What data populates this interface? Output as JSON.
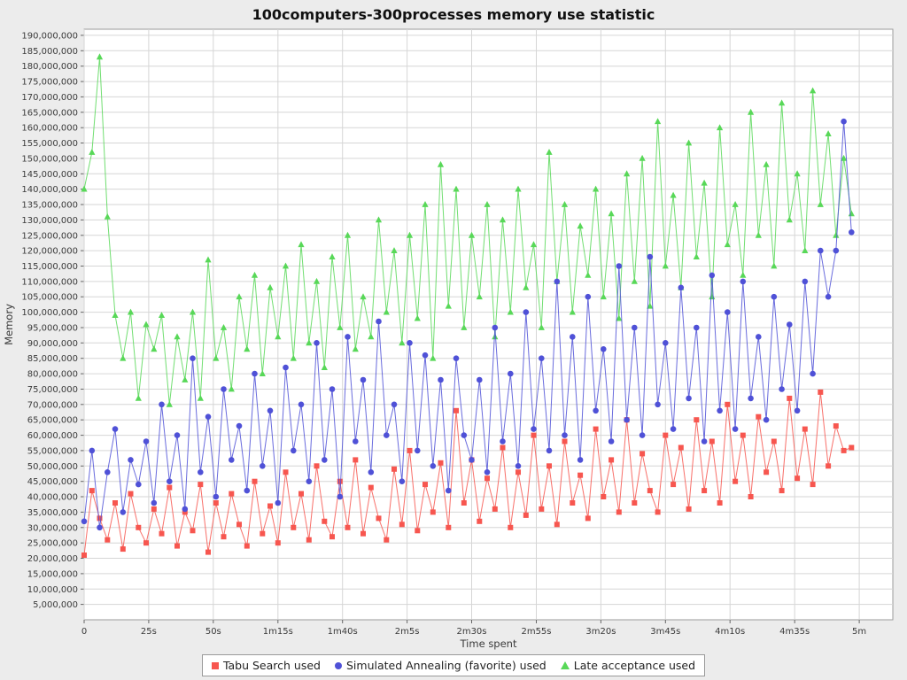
{
  "chart_data": {
    "type": "line",
    "title": "100computers-300processes memory use statistic",
    "xlabel": "Time spent",
    "ylabel": "Memory",
    "ylim": [
      0,
      190000000
    ],
    "y_tick_step": 5000000,
    "xlim_seconds": [
      0,
      300
    ],
    "grid": true,
    "legend_position": "bottom",
    "plot_background": "#ffffff",
    "outer_background": "#ececec",
    "gridline_color": "#d6d6d6",
    "y_unit_multiplier": 1000000,
    "x_ticks": [
      {
        "s": 0,
        "label": "0"
      },
      {
        "s": 25,
        "label": "25s"
      },
      {
        "s": 50,
        "label": "50s"
      },
      {
        "s": 75,
        "label": "1m15s"
      },
      {
        "s": 100,
        "label": "1m40s"
      },
      {
        "s": 125,
        "label": "2m5s"
      },
      {
        "s": 150,
        "label": "2m30s"
      },
      {
        "s": 175,
        "label": "2m55s"
      },
      {
        "s": 200,
        "label": "3m20s"
      },
      {
        "s": 225,
        "label": "3m45s"
      },
      {
        "s": 250,
        "label": "4m10s"
      },
      {
        "s": 275,
        "label": "4m35s"
      },
      {
        "s": 300,
        "label": "5m"
      }
    ],
    "x_seconds": [
      0,
      3,
      6,
      9,
      12,
      15,
      18,
      21,
      24,
      27,
      30,
      33,
      36,
      39,
      42,
      45,
      48,
      51,
      54,
      57,
      60,
      63,
      66,
      69,
      72,
      75,
      78,
      81,
      84,
      87,
      90,
      93,
      96,
      99,
      102,
      105,
      108,
      111,
      114,
      117,
      120,
      123,
      126,
      129,
      132,
      135,
      138,
      141,
      144,
      147,
      150,
      153,
      156,
      159,
      162,
      165,
      168,
      171,
      174,
      177,
      180,
      183,
      186,
      189,
      192,
      195,
      198,
      201,
      204,
      207,
      210,
      213,
      216,
      219,
      222,
      225,
      228,
      231,
      234,
      237,
      240,
      243,
      246,
      249,
      252,
      255,
      258,
      261,
      264,
      267,
      270,
      273,
      276,
      279,
      282,
      285,
      288,
      291,
      294,
      297
    ],
    "series": [
      {
        "name": "Tabu Search used",
        "color": "#f7564f",
        "marker": "square",
        "values_millions": [
          21,
          42,
          33,
          26,
          38,
          23,
          41,
          30,
          25,
          36,
          28,
          43,
          24,
          35,
          29,
          44,
          22,
          38,
          27,
          41,
          31,
          24,
          45,
          28,
          37,
          25,
          48,
          30,
          41,
          26,
          50,
          32,
          27,
          45,
          30,
          52,
          28,
          43,
          33,
          26,
          49,
          31,
          55,
          29,
          44,
          35,
          51,
          30,
          68,
          38,
          52,
          32,
          46,
          36,
          56,
          30,
          48,
          34,
          60,
          36,
          50,
          31,
          58,
          38,
          47,
          33,
          62,
          40,
          52,
          35,
          65,
          38,
          54,
          42,
          35,
          60,
          44,
          56,
          36,
          65,
          42,
          58,
          38,
          70,
          45,
          60,
          40,
          66,
          48,
          58,
          42,
          72,
          46,
          62,
          44,
          74,
          50,
          63,
          55,
          56
        ]
      },
      {
        "name": "Simulated Annealing (favorite) used",
        "color": "#4f51d7",
        "marker": "circle",
        "values_millions": [
          32,
          55,
          30,
          48,
          62,
          35,
          52,
          44,
          58,
          38,
          70,
          45,
          60,
          36,
          85,
          48,
          66,
          40,
          75,
          52,
          63,
          42,
          80,
          50,
          68,
          38,
          82,
          55,
          70,
          45,
          90,
          52,
          75,
          40,
          92,
          58,
          78,
          48,
          97,
          60,
          70,
          45,
          90,
          55,
          86,
          50,
          78,
          42,
          85,
          60,
          52,
          78,
          48,
          95,
          58,
          80,
          50,
          100,
          62,
          85,
          55,
          110,
          60,
          92,
          52,
          105,
          68,
          88,
          58,
          115,
          65,
          95,
          60,
          118,
          70,
          90,
          62,
          108,
          72,
          95,
          58,
          112,
          68,
          100,
          62,
          110,
          72,
          92,
          65,
          105,
          75,
          96,
          68,
          110,
          80,
          120,
          105,
          120,
          162,
          126
        ]
      },
      {
        "name": "Late acceptance used",
        "color": "#58d858",
        "marker": "triangle",
        "values_millions": [
          140,
          152,
          183,
          131,
          99,
          85,
          100,
          72,
          96,
          88,
          99,
          70,
          92,
          78,
          100,
          72,
          117,
          85,
          95,
          75,
          105,
          88,
          112,
          80,
          108,
          92,
          115,
          85,
          122,
          90,
          110,
          82,
          118,
          95,
          125,
          88,
          105,
          92,
          130,
          100,
          120,
          90,
          125,
          98,
          135,
          85,
          148,
          102,
          140,
          95,
          125,
          105,
          135,
          92,
          130,
          100,
          140,
          108,
          122,
          95,
          152,
          110,
          135,
          100,
          128,
          112,
          140,
          105,
          132,
          98,
          145,
          110,
          150,
          102,
          162,
          115,
          138,
          108,
          155,
          118,
          142,
          105,
          160,
          122,
          135,
          112,
          165,
          125,
          148,
          115,
          168,
          130,
          145,
          120,
          172,
          135,
          158,
          125,
          150,
          132
        ]
      }
    ]
  }
}
